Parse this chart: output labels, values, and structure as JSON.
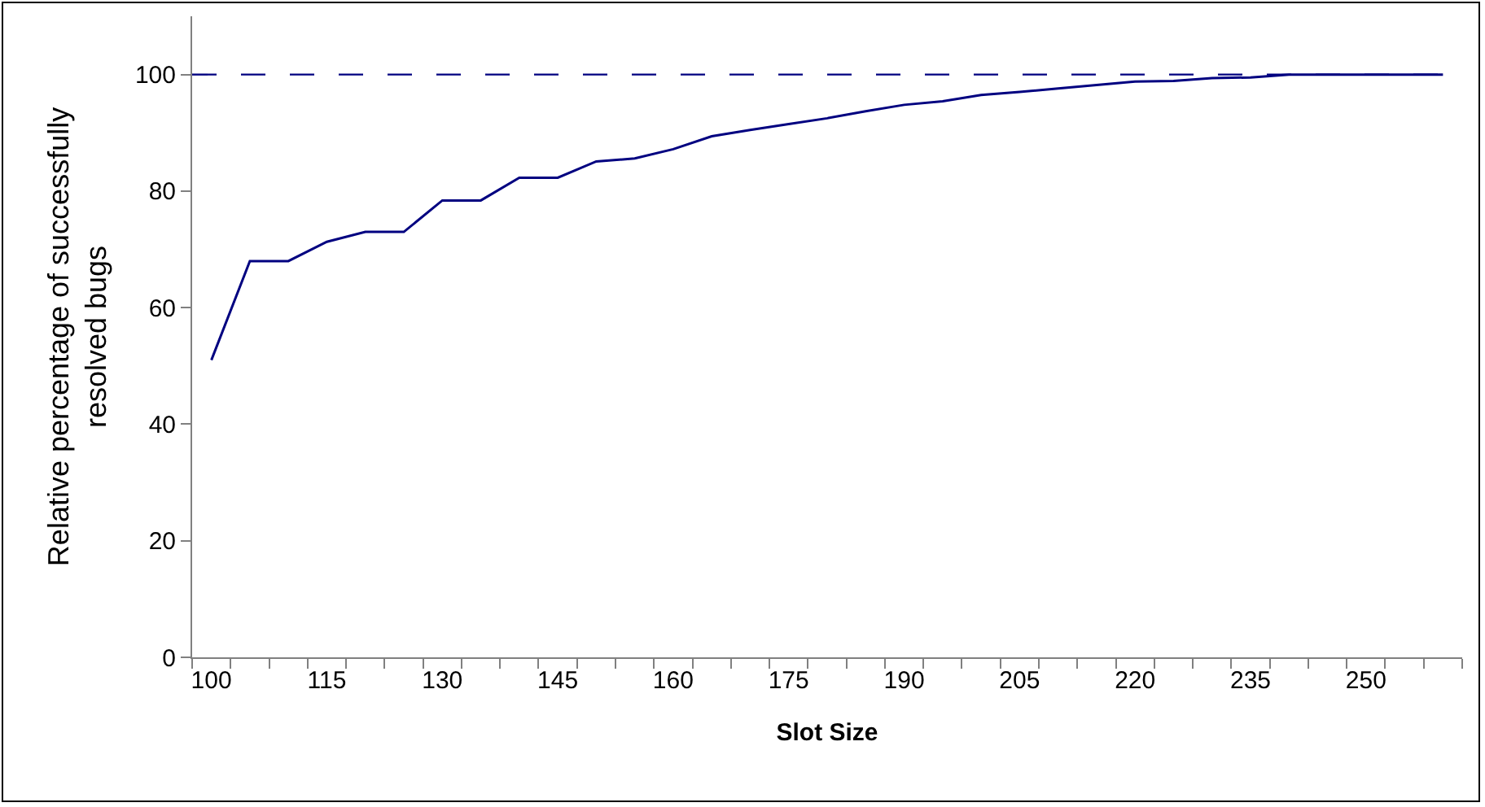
{
  "chart_data": {
    "type": "line",
    "xlabel": "Slot Size",
    "ylabel": "Relative percentage of successfully\nresolved bugs",
    "categories": [
      "100",
      null,
      null,
      "115",
      null,
      null,
      "130",
      null,
      null,
      "145",
      null,
      null,
      "160",
      null,
      null,
      "175",
      null,
      null,
      "190",
      null,
      null,
      "205",
      null,
      null,
      "220",
      null,
      null,
      "235",
      null,
      null,
      "250",
      null,
      null
    ],
    "series": [
      {
        "color": "#000080",
        "values": [
          51,
          68,
          68,
          71.3,
          73,
          73,
          78.4,
          78.4,
          82.3,
          82.3,
          85.1,
          85.6,
          87.2,
          89.4,
          90.5,
          91.5,
          92.5,
          93.7,
          94.8,
          95.4,
          96.5,
          97,
          97.6,
          98.2,
          98.8,
          98.9,
          99.4,
          99.5,
          100,
          100,
          100,
          100,
          100
        ]
      }
    ],
    "ref_lines": [
      {
        "axis": "y",
        "value": 100,
        "color": "#000080",
        "line_style": "dashed"
      }
    ],
    "ylim": [
      0,
      110
    ],
    "yticks": [
      0,
      20,
      40,
      60,
      80,
      100
    ],
    "grid": false,
    "marker": "none",
    "line_style": "solid"
  }
}
